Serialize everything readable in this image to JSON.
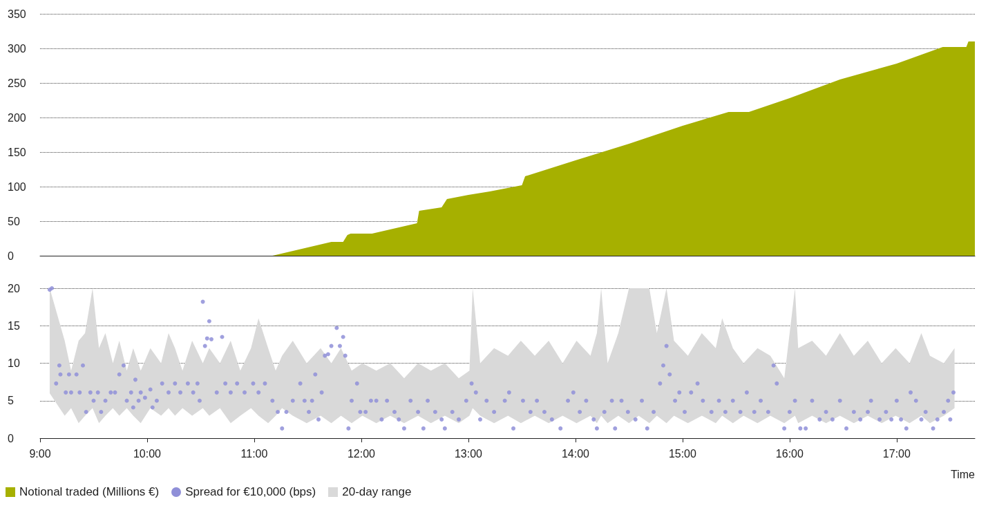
{
  "chart_data": [
    {
      "type": "area",
      "xlim": [
        9,
        17.73
      ],
      "ylim": [
        0,
        350
      ],
      "yticks": [
        0,
        50,
        100,
        150,
        200,
        250,
        300,
        350
      ],
      "grid": "y",
      "legend": "bottom left",
      "tick_labels": "y",
      "series": [
        {
          "name": "Notional traded (Millions €)",
          "color": "#a6b000",
          "x": [
            9,
            11.17,
            11.72,
            11.83,
            11.87,
            11.9,
            12.1,
            12.52,
            12.54,
            12.75,
            12.8,
            13.0,
            13.2,
            13.5,
            13.53,
            14.0,
            14.5,
            15.0,
            15.43,
            15.62,
            16.0,
            16.47,
            17.0,
            17.43,
            17.65,
            17.67,
            17.73
          ],
          "values": [
            0,
            0,
            20,
            20,
            30,
            32,
            32,
            47,
            65,
            70,
            82,
            88,
            93,
            102,
            115,
            138,
            162,
            188,
            208,
            208,
            228,
            255,
            278,
            302,
            302,
            310,
            310
          ]
        }
      ]
    },
    {
      "type": "scatter",
      "xlim": [
        9,
        17.73
      ],
      "ylim": [
        0,
        20
      ],
      "yticks": [
        0,
        5,
        10,
        15,
        20
      ],
      "xticks": [
        {
          "value": 9,
          "label": "9:00"
        },
        {
          "value": 10,
          "label": "10:00"
        },
        {
          "value": 11,
          "label": "11:00"
        },
        {
          "value": 12,
          "label": "12:00"
        },
        {
          "value": 13,
          "label": "13:00"
        },
        {
          "value": 14,
          "label": "14:00"
        },
        {
          "value": 15,
          "label": "15:00"
        },
        {
          "value": 16,
          "label": "16:00"
        },
        {
          "value": 17,
          "label": "17:00"
        }
      ],
      "xlabel": "Time",
      "grid": "y",
      "legend": "bottom left",
      "marker": "circle",
      "series": [
        {
          "name": "Spread for €10,000 (bps)",
          "color": "#8f8fd8",
          "x": [
            9.09,
            9.11,
            9.15,
            9.18,
            9.19,
            9.24,
            9.27,
            9.29,
            9.34,
            9.37,
            9.4,
            9.43,
            9.47,
            9.5,
            9.54,
            9.57,
            9.61,
            9.66,
            9.7,
            9.74,
            9.78,
            9.81,
            9.85,
            9.87,
            9.89,
            9.92,
            9.94,
            9.98,
            10.03,
            10.05,
            10.09,
            10.14,
            10.2,
            10.26,
            10.31,
            10.38,
            10.43,
            10.47,
            10.49,
            10.52,
            10.54,
            10.56,
            10.58,
            10.6,
            10.65,
            10.7,
            10.73,
            10.78,
            10.84,
            10.91,
            10.99,
            11.04,
            11.1,
            11.17,
            11.22,
            11.26,
            11.3,
            11.36,
            11.43,
            11.47,
            11.51,
            11.54,
            11.57,
            11.6,
            11.63,
            11.66,
            11.69,
            11.72,
            11.77,
            11.8,
            11.83,
            11.85,
            11.88,
            11.91,
            11.96,
            11.99,
            12.04,
            12.09,
            12.14,
            12.19,
            12.24,
            12.31,
            12.35,
            12.4,
            12.46,
            12.53,
            12.58,
            12.62,
            12.69,
            12.75,
            12.78,
            12.85,
            12.91,
            12.98,
            13.03,
            13.07,
            13.11,
            13.17,
            13.24,
            13.34,
            13.38,
            13.42,
            13.51,
            13.58,
            13.64,
            13.71,
            13.78,
            13.86,
            13.93,
            13.98,
            14.04,
            14.1,
            14.17,
            14.2,
            14.27,
            14.34,
            14.37,
            14.43,
            14.49,
            14.56,
            14.62,
            14.67,
            14.73,
            14.79,
            14.82,
            14.85,
            14.88,
            14.93,
            14.97,
            15.02,
            15.08,
            15.14,
            15.19,
            15.27,
            15.34,
            15.4,
            15.47,
            15.54,
            15.6,
            15.67,
            15.73,
            15.8,
            15.85,
            15.88,
            15.95,
            16.0,
            16.05,
            16.1,
            16.15,
            16.21,
            16.28,
            16.34,
            16.4,
            16.47,
            16.53,
            16.6,
            16.66,
            16.73,
            16.76,
            16.84,
            16.9,
            16.95,
            17.0,
            17.04,
            17.09,
            17.13,
            17.18,
            17.23,
            17.27,
            17.34,
            17.38,
            17.44,
            17.48,
            17.5,
            17.53
          ],
          "values": [
            19.8,
            20,
            7.3,
            9.7,
            8.5,
            6.1,
            8.5,
            6.1,
            8.5,
            6.1,
            9.7,
            3.5,
            6.1,
            5,
            6.1,
            3.5,
            5,
            6.1,
            6.1,
            8.5,
            9.7,
            5,
            6.1,
            4.1,
            7.8,
            5,
            6.1,
            5.4,
            6.5,
            4.1,
            5,
            7.3,
            6.1,
            7.3,
            6.1,
            7.3,
            6.1,
            7.3,
            5,
            18.2,
            12.3,
            13.3,
            15.6,
            13.2,
            6.1,
            13.5,
            7.3,
            6.1,
            7.3,
            6.1,
            7.3,
            6.1,
            7.3,
            5,
            3.5,
            1.3,
            3.5,
            5,
            7.3,
            5,
            3.5,
            5,
            8.5,
            2.5,
            6.1,
            11,
            11.2,
            12.3,
            14.7,
            12.3,
            13.5,
            11,
            1.3,
            5,
            7.3,
            3.5,
            3.5,
            5,
            5,
            2.5,
            5,
            3.5,
            2.5,
            1.3,
            5,
            3.5,
            1.3,
            5,
            3.5,
            2.5,
            1.3,
            3.5,
            2.5,
            5,
            7.3,
            6.1,
            2.5,
            5,
            3.5,
            5,
            6.1,
            1.3,
            5,
            3.5,
            5,
            3.5,
            2.5,
            1.3,
            5,
            6.1,
            3.5,
            5,
            2.5,
            1.3,
            3.5,
            5,
            1.3,
            5,
            3.5,
            2.5,
            5,
            1.3,
            3.5,
            7.3,
            9.7,
            12.3,
            8.5,
            5,
            6.1,
            3.5,
            6.1,
            7.3,
            5,
            3.5,
            5,
            3.5,
            5,
            3.5,
            6.1,
            3.5,
            5,
            3.5,
            9.7,
            7.3,
            1.3,
            3.5,
            5,
            1.3,
            1.3,
            5,
            2.5,
            3.5,
            2.5,
            5,
            1.3,
            3.5,
            2.5,
            3.5,
            5,
            2.5,
            3.5,
            2.5,
            5,
            2.5,
            1.3,
            6.1,
            5,
            2.5,
            3.5,
            1.3,
            2.5,
            3.5,
            5,
            2.5,
            6.1
          ]
        },
        {
          "name": "20-day range",
          "type": "area",
          "color": "#d9d9d9",
          "x": [
            9.09,
            9.23,
            9.29,
            9.36,
            9.42,
            9.49,
            9.55,
            9.61,
            9.68,
            9.74,
            9.81,
            9.87,
            9.94,
            10.03,
            10.13,
            10.2,
            10.26,
            10.33,
            10.42,
            10.52,
            10.58,
            10.68,
            10.78,
            10.87,
            10.97,
            11.04,
            11.13,
            11.2,
            11.26,
            11.36,
            11.49,
            11.62,
            11.72,
            11.81,
            11.91,
            12.01,
            12.14,
            12.27,
            12.4,
            12.53,
            12.65,
            12.78,
            12.91,
            13.01,
            13.04,
            13.11,
            13.24,
            13.37,
            13.49,
            13.62,
            13.75,
            13.88,
            14.01,
            14.14,
            14.2,
            14.24,
            14.3,
            14.4,
            14.5,
            14.59,
            14.69,
            14.76,
            14.85,
            14.92,
            15.05,
            15.18,
            15.31,
            15.37,
            15.47,
            15.57,
            15.7,
            15.82,
            15.95,
            16.05,
            16.08,
            16.21,
            16.34,
            16.47,
            16.6,
            16.73,
            16.86,
            16.99,
            17.12,
            17.23,
            17.31,
            17.44,
            17.54
          ],
          "values": [
            null,
            null,
            null,
            null,
            null,
            null,
            null,
            null,
            null,
            null,
            null,
            null,
            null,
            null,
            null,
            null,
            null,
            null,
            null,
            null,
            null,
            null,
            null,
            null,
            null,
            null,
            null,
            null,
            null,
            null,
            null,
            null,
            null,
            null,
            null,
            null,
            null,
            null,
            null,
            null,
            null,
            null,
            null,
            null,
            null,
            null,
            null,
            null,
            null,
            null,
            null,
            null,
            null,
            null,
            null,
            null,
            null,
            null,
            null,
            null,
            null,
            null,
            null,
            null,
            null,
            null,
            null,
            null,
            null,
            null,
            null,
            null,
            null,
            null,
            null,
            null,
            null,
            null,
            null,
            null,
            null,
            null,
            null,
            null,
            null,
            null,
            null
          ],
          "lower": [
            6,
            3,
            4,
            2,
            3,
            4,
            2,
            3,
            4,
            3,
            4,
            3,
            2,
            4,
            3,
            4,
            3,
            4,
            3,
            4,
            3,
            4,
            2,
            3,
            4,
            3,
            2,
            3,
            4,
            3,
            2,
            3,
            2,
            3,
            2,
            3,
            2,
            3,
            2,
            3,
            2,
            3,
            2,
            3,
            4,
            3,
            2,
            3,
            2,
            3,
            2,
            3,
            2,
            3,
            2,
            3,
            2,
            3,
            2,
            3,
            2,
            3,
            2,
            3,
            2,
            3,
            2,
            3,
            2,
            3,
            2,
            3,
            2,
            3,
            2,
            3,
            2,
            3,
            2,
            3,
            2,
            3,
            2,
            3,
            2,
            3,
            4
          ],
          "upper": [
            20,
            13,
            9,
            13,
            14,
            20,
            12,
            14,
            10,
            13,
            9,
            12,
            9,
            12,
            10,
            14,
            12,
            9,
            13,
            10,
            12,
            10,
            13,
            9,
            12,
            16,
            12,
            9,
            11,
            13,
            10,
            12,
            10,
            12,
            9,
            10,
            9,
            10,
            8,
            10,
            9,
            10,
            8,
            9,
            20,
            10,
            12,
            11,
            13,
            11,
            13,
            10,
            13,
            11,
            14,
            20,
            10,
            14,
            20,
            20,
            20,
            14,
            20,
            13,
            11,
            14,
            12,
            16,
            12,
            10,
            12,
            11,
            8,
            20,
            12,
            13,
            11,
            14,
            11,
            13,
            10,
            12,
            10,
            14,
            11,
            10,
            12
          ]
        }
      ]
    }
  ]
}
